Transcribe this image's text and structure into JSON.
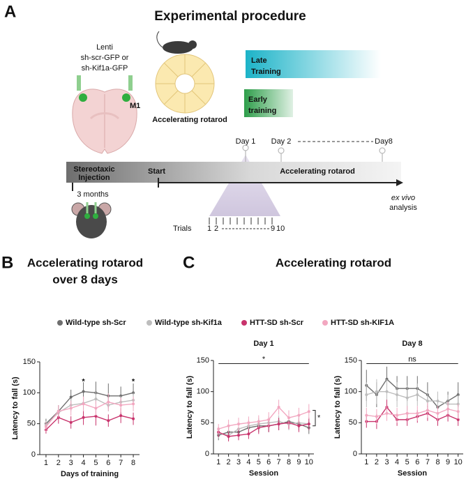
{
  "diagram": {
    "panel_label": "A",
    "title": "Experimental procedure",
    "injection": {
      "lines": [
        "Lenti",
        "sh-scr-GFP or",
        "sh-Kif1a-GFP"
      ],
      "region": "M1"
    },
    "rotarod_label": "Accelerating rotarod",
    "late_training": [
      "Late",
      "Training"
    ],
    "early_training": [
      "Early",
      "training"
    ],
    "timeline": {
      "days": [
        "Day 1",
        "Day 2",
        "Day8"
      ],
      "stage": [
        "Stereotaxic",
        "Injection"
      ],
      "start": "Start",
      "phase": "Accelerating rotarod",
      "delay": "3 months",
      "endpoint": [
        "ex vivo",
        "analysis"
      ]
    },
    "trials": {
      "label": "Trials",
      "numbers": [
        "1",
        "2",
        "9",
        "10"
      ]
    }
  },
  "panel_b": {
    "label": "B"
  },
  "panel_c": {
    "label": "C",
    "title": "Accelerating rotarod"
  },
  "legend": [
    {
      "name": "Wild-type sh-Scr",
      "color": "#6e6e6e"
    },
    {
      "name": "Wild-type sh-Kif1a",
      "color": "#bdbdbd"
    },
    {
      "name": "HTT-SD sh-Scr",
      "color": "#c8336c"
    },
    {
      "name": "HTT-SD sh-KIF1A",
      "color": "#f2a7c0"
    }
  ],
  "chart_data": [
    {
      "type": "line",
      "title": [
        "Accelerating rotarod",
        "over 8 days"
      ],
      "x_label": "Days of training",
      "y_label": "Latency to fall (s)",
      "x": [
        1,
        2,
        3,
        4,
        5,
        6,
        7,
        8
      ],
      "xlim": [
        0.5,
        8.5
      ],
      "xticks": [
        1,
        2,
        3,
        4,
        5,
        6,
        7,
        8
      ],
      "ylim": [
        0,
        150
      ],
      "yticks": [
        0,
        50,
        100,
        150
      ],
      "series": [
        {
          "values": [
            50,
            70,
            93,
            102,
            100,
            95,
            95,
            100
          ],
          "errors": [
            8,
            10,
            12,
            15,
            18,
            20,
            15,
            15
          ]
        },
        {
          "values": [
            48,
            68,
            80,
            83,
            90,
            80,
            85,
            88
          ],
          "errors": [
            6,
            8,
            10,
            10,
            12,
            10,
            10,
            12
          ]
        },
        {
          "values": [
            40,
            60,
            52,
            60,
            62,
            55,
            63,
            58
          ],
          "errors": [
            6,
            10,
            10,
            12,
            15,
            10,
            12,
            10
          ]
        },
        {
          "values": [
            45,
            70,
            75,
            82,
            75,
            85,
            80,
            82
          ],
          "errors": [
            8,
            10,
            12,
            12,
            12,
            14,
            12,
            12
          ]
        }
      ],
      "annotations": [
        {
          "text": "*",
          "x": 4,
          "y": 118
        },
        {
          "text": "*",
          "x": 8,
          "y": 118
        }
      ]
    },
    {
      "type": "line",
      "title": "Day 1",
      "title_color": "#3fae49",
      "x_label": "Session",
      "y_label": "Latency to fall (s)",
      "x": [
        1,
        2,
        3,
        4,
        5,
        6,
        7,
        8,
        9,
        10
      ],
      "xlim": [
        0.5,
        10.5
      ],
      "xticks": [
        1,
        2,
        3,
        4,
        5,
        6,
        7,
        8,
        9,
        10
      ],
      "ylim": [
        0,
        150
      ],
      "yticks": [
        0,
        50,
        100,
        150
      ],
      "series": [
        {
          "values": [
            30,
            35,
            35,
            42,
            45,
            45,
            48,
            52,
            48,
            42
          ],
          "errors": [
            8,
            10,
            10,
            10,
            10,
            10,
            10,
            10,
            10,
            10
          ]
        },
        {
          "values": [
            33,
            30,
            40,
            45,
            48,
            50,
            52,
            48,
            50,
            48
          ],
          "errors": [
            8,
            8,
            10,
            10,
            10,
            10,
            10,
            10,
            10,
            10
          ]
        },
        {
          "values": [
            35,
            28,
            30,
            32,
            42,
            45,
            48,
            50,
            45,
            48
          ],
          "errors": [
            8,
            8,
            8,
            8,
            10,
            10,
            10,
            10,
            10,
            10
          ]
        },
        {
          "values": [
            40,
            45,
            48,
            50,
            52,
            55,
            75,
            58,
            62,
            68
          ],
          "errors": [
            8,
            10,
            10,
            10,
            10,
            12,
            12,
            12,
            12,
            12
          ]
        }
      ],
      "sig_bar": {
        "text": "*",
        "x": [
          1,
          10
        ],
        "y": 145
      },
      "bracket": {
        "text": "*",
        "y": [
          45,
          70
        ]
      }
    },
    {
      "type": "line",
      "title": "Day 8",
      "title_color": "#1aa3b8",
      "x_label": "Session",
      "y_label": "Latency to fall (s)",
      "x": [
        1,
        2,
        3,
        4,
        5,
        6,
        7,
        8,
        9,
        10
      ],
      "xlim": [
        0.5,
        10.5
      ],
      "xticks": [
        1,
        2,
        3,
        4,
        5,
        6,
        7,
        8,
        9,
        10
      ],
      "ylim": [
        0,
        150
      ],
      "yticks": [
        0,
        50,
        100,
        150
      ],
      "series": [
        {
          "values": [
            110,
            95,
            120,
            105,
            105,
            105,
            95,
            75,
            85,
            95
          ],
          "errors": [
            25,
            20,
            20,
            20,
            20,
            20,
            20,
            15,
            15,
            20
          ]
        },
        {
          "values": [
            95,
            100,
            100,
            95,
            90,
            95,
            85,
            85,
            80,
            80
          ],
          "errors": [
            20,
            20,
            20,
            20,
            20,
            18,
            15,
            15,
            15,
            15
          ]
        },
        {
          "values": [
            52,
            52,
            75,
            55,
            55,
            60,
            65,
            55,
            62,
            55
          ],
          "errors": [
            10,
            12,
            12,
            10,
            10,
            10,
            12,
            10,
            10,
            10
          ]
        },
        {
          "values": [
            62,
            60,
            65,
            62,
            65,
            65,
            70,
            65,
            72,
            68
          ],
          "errors": [
            12,
            12,
            12,
            12,
            12,
            12,
            12,
            12,
            12,
            12
          ]
        }
      ],
      "sig_bar": {
        "text": "ns",
        "x": [
          1,
          10
        ],
        "y": 145
      }
    }
  ]
}
